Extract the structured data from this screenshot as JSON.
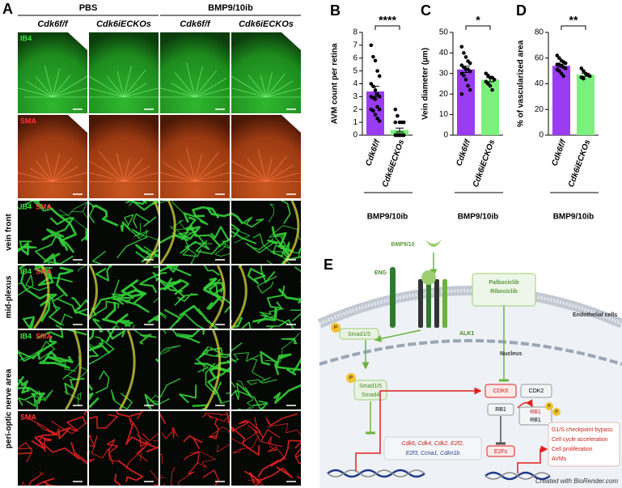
{
  "panel_a": {
    "label": "A",
    "groups": [
      "PBS",
      "BMP9/10ib"
    ],
    "columns": [
      "Cdk6f/f",
      "Cdk6iECKOs",
      "Cdk6f/f",
      "Cdk6iECKOs"
    ],
    "rows": [
      {
        "channels": [
          "IB4"
        ]
      },
      {
        "channels": [
          "SMA"
        ]
      },
      {
        "channels": [
          "IB4",
          "SMA"
        ]
      },
      {
        "channels": [
          "IB4",
          "SMA"
        ]
      },
      {
        "channels": [
          "IB4",
          "SMA"
        ]
      },
      {
        "channels": [
          "SMA"
        ]
      }
    ],
    "region_labels": [
      "vein front",
      "mid-plexus",
      "peri-optic nerve area"
    ]
  },
  "chart_data": [
    {
      "type": "bar",
      "panel": "B",
      "ylabel": "AVM count per retina",
      "categories": [
        "Cdk6f/f",
        "Cdk6iECKOs"
      ],
      "values": [
        3.4,
        0.4
      ],
      "errors": [
        0.4,
        0.15
      ],
      "points": [
        [
          7,
          6.1,
          5.8,
          5.0,
          4.6,
          4.0,
          3.8,
          3.5,
          3.2,
          3.0,
          3.0,
          2.9,
          2.8,
          2.2,
          2.0,
          2.0,
          1.9,
          1.6,
          1.3,
          1.1
        ],
        [
          2,
          1.5,
          1,
          1,
          1,
          1,
          0,
          0,
          0,
          0,
          0,
          0,
          0,
          0,
          0,
          0,
          0,
          0,
          0,
          0
        ]
      ],
      "colors": [
        "#9a3cf2",
        "#7cf07c"
      ],
      "ylim": [
        0,
        8
      ],
      "yticks": [
        0,
        1,
        2,
        3,
        4,
        5,
        6,
        7,
        8
      ],
      "significance": "****",
      "group_label": "BMP9/10ib"
    },
    {
      "type": "bar",
      "panel": "C",
      "ylabel": "Vein diameter (µm)",
      "categories": [
        "Cdk6f/f",
        "Cdk6iECKOs"
      ],
      "values": [
        32,
        27
      ],
      "errors": [
        1.5,
        1
      ],
      "points": [
        [
          43,
          40,
          38,
          36,
          35,
          34,
          33,
          32,
          32,
          31,
          30,
          29,
          27,
          24,
          22,
          20
        ],
        [
          30,
          29,
          28,
          28,
          27,
          26,
          25,
          24,
          22
        ]
      ],
      "colors": [
        "#9a3cf2",
        "#7cf07c"
      ],
      "ylim": [
        0,
        50
      ],
      "yticks": [
        0,
        10,
        20,
        30,
        40,
        50
      ],
      "significance": "*",
      "group_label": "BMP9/10ib"
    },
    {
      "type": "bar",
      "panel": "D",
      "ylabel": "% of vascularized area",
      "categories": [
        "Cdk6f/f",
        "Cdk6iECKOs"
      ],
      "values": [
        54,
        47
      ],
      "errors": [
        1.2,
        1.2
      ],
      "points": [
        [
          62,
          60,
          58,
          57,
          56,
          55,
          55,
          54,
          53,
          52,
          51,
          50,
          48,
          46
        ],
        [
          52,
          50,
          48,
          47,
          46,
          45,
          44
        ]
      ],
      "colors": [
        "#9a3cf2",
        "#7cf07c"
      ],
      "ylim": [
        0,
        80
      ],
      "yticks": [
        0,
        20,
        40,
        60,
        80
      ],
      "significance": "**",
      "group_label": "BMP9/10ib"
    }
  ],
  "panel_e": {
    "label": "E",
    "ligand": "BMP9/10",
    "receptors": [
      "ENG",
      "ALK1"
    ],
    "inhibitors": [
      "Palbociclib",
      "Ribociclib"
    ],
    "cell": "Endothelial cells",
    "nucleus": "Nucleus",
    "phospho": "P",
    "smad": "Smad1/5",
    "smad4": "Smad4",
    "cdk6": "CDK6",
    "cdk2": "CDK2",
    "rb1": "RB1",
    "e2fs": "E2Fs",
    "target_genes": [
      "Cdk6, Cdk4, Cdk2, E2f2,",
      "E2f3, Ccna1, Cdkn1b"
    ],
    "outcomes": [
      "G1/S checkpoint bypass",
      "Cell cycle acceleration",
      "Cell proliferation",
      "AVMs"
    ],
    "credit": "Created with BioRender.com"
  }
}
